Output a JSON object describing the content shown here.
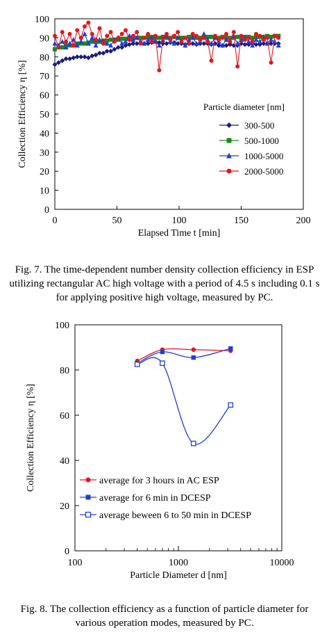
{
  "figures": [
    {
      "caption": "Fig. 7.  The time-dependent number density collection efficiency in ESP utilizing rectangular AC high voltage with a period of 4.5 s including 0.1 s for applying positive high voltage, measured by PC."
    },
    {
      "caption": "Fig. 8.  The collection efficiency as a function of particle diameter for various operation modes, measured by PC."
    }
  ],
  "chart_data": [
    {
      "type": "line",
      "title": "",
      "xlabel": "Elapsed Time t [min]",
      "ylabel": "Collection Efficiency  η  [%]",
      "xlim": [
        0,
        200
      ],
      "ylim": [
        0,
        100
      ],
      "xticks": [
        0,
        50,
        100,
        150,
        200
      ],
      "yticks": [
        0,
        10,
        20,
        30,
        40,
        50,
        60,
        70,
        80,
        90,
        100
      ],
      "grid": false,
      "legend_title": "Particle diameter [nm]",
      "legend_position": "center-right",
      "series": [
        {
          "name": "300-500",
          "color": "#1a1a80",
          "marker": "diamond",
          "x": [
            0,
            3,
            6,
            9,
            12,
            15,
            18,
            21,
            24,
            27,
            30,
            33,
            36,
            39,
            42,
            45,
            48,
            51,
            54,
            57,
            60,
            63,
            66,
            69,
            72,
            75,
            78,
            81,
            84,
            87,
            90,
            93,
            96,
            99,
            102,
            105,
            108,
            111,
            114,
            117,
            120,
            123,
            126,
            129,
            132,
            135,
            138,
            141,
            144,
            147,
            150,
            153,
            156,
            159,
            162,
            165,
            168,
            171,
            174,
            177,
            180
          ],
          "y": [
            76,
            77,
            78,
            79,
            79,
            79.5,
            80,
            80,
            80,
            79.5,
            80.5,
            81,
            82,
            82,
            83,
            83,
            84,
            85,
            85,
            86,
            86.5,
            87,
            87,
            87.5,
            87,
            87,
            87.5,
            88,
            87.5,
            87,
            87,
            87.5,
            87.5,
            87,
            87,
            86.5,
            87,
            87,
            86.5,
            87,
            87,
            87,
            86.5,
            87,
            86,
            86,
            86,
            86.5,
            86,
            86,
            87,
            86.5,
            86.5,
            87,
            86.5,
            86.5,
            87,
            87,
            87,
            87,
            87
          ]
        },
        {
          "name": "500-1000",
          "color": "#1a8a1a",
          "marker": "square",
          "x": [
            0,
            3,
            6,
            9,
            12,
            15,
            18,
            21,
            24,
            27,
            30,
            33,
            36,
            39,
            42,
            45,
            48,
            51,
            54,
            57,
            60,
            63,
            66,
            69,
            72,
            75,
            78,
            81,
            84,
            87,
            90,
            93,
            96,
            99,
            102,
            105,
            108,
            111,
            114,
            117,
            120,
            123,
            126,
            129,
            132,
            135,
            138,
            141,
            144,
            147,
            150,
            153,
            156,
            159,
            162,
            165,
            168,
            171,
            174,
            177,
            180
          ],
          "y": [
            84,
            85,
            85,
            86,
            86,
            86,
            87,
            87,
            87,
            87.5,
            88,
            88,
            88,
            88.5,
            88.5,
            89,
            89,
            89,
            89.5,
            89.5,
            90,
            90,
            90,
            90,
            90,
            90.5,
            90.5,
            90,
            90,
            90.5,
            90,
            90,
            90.5,
            90,
            90,
            90,
            90.5,
            90.5,
            90,
            90,
            90,
            90.5,
            90.5,
            90,
            90,
            90.5,
            90,
            90,
            90,
            90.5,
            90,
            90.5,
            90.5,
            90,
            90.5,
            90.5,
            90.5,
            91,
            90.5,
            91,
            91
          ]
        },
        {
          "name": "1000-5000",
          "color": "#1f3fd6",
          "marker": "triangle",
          "x": [
            0,
            3,
            6,
            9,
            12,
            15,
            18,
            21,
            24,
            27,
            30,
            33,
            36,
            39,
            42,
            45,
            48,
            51,
            54,
            57,
            60,
            63,
            66,
            69,
            72,
            75,
            78,
            81,
            84,
            87,
            90,
            93,
            96,
            99,
            102,
            105,
            108,
            111,
            114,
            117,
            120,
            123,
            126,
            129,
            132,
            135,
            138,
            141,
            144,
            147,
            150,
            153,
            156,
            159,
            162,
            165,
            168,
            171,
            174,
            177,
            180
          ],
          "y": [
            87,
            86,
            88,
            85,
            87,
            89,
            86,
            88,
            92,
            87,
            90,
            86,
            89,
            88,
            87,
            86,
            89,
            90,
            87,
            88,
            91,
            89,
            90,
            88,
            87,
            89,
            90,
            88,
            86,
            89,
            91,
            88,
            87,
            90,
            88,
            86,
            89,
            90,
            87,
            88,
            92,
            89,
            87,
            90,
            88,
            86,
            89,
            88,
            91,
            87,
            89,
            90,
            88,
            86,
            89,
            88,
            90,
            87,
            89,
            88,
            86
          ]
        },
        {
          "name": "2000-5000",
          "color": "#e8141c",
          "marker": "circle",
          "x": [
            0,
            3,
            6,
            9,
            12,
            15,
            18,
            21,
            24,
            27,
            30,
            33,
            36,
            39,
            42,
            45,
            48,
            51,
            54,
            57,
            60,
            63,
            66,
            69,
            72,
            75,
            78,
            81,
            84,
            87,
            90,
            93,
            96,
            99,
            102,
            105,
            108,
            111,
            114,
            117,
            120,
            123,
            126,
            129,
            132,
            135,
            138,
            141,
            144,
            147,
            150,
            153,
            156,
            159,
            162,
            165,
            168,
            171,
            174,
            177,
            180
          ],
          "y": [
            91,
            85,
            93,
            88,
            92,
            86,
            94,
            90,
            96,
            98,
            92,
            89,
            95,
            87,
            91,
            93,
            88,
            90,
            92,
            94,
            89,
            91,
            93,
            87,
            90,
            92,
            88,
            91,
            73,
            90,
            92,
            89,
            91,
            93,
            88,
            90,
            87,
            92,
            91,
            89,
            90,
            88,
            78,
            91,
            89,
            90,
            92,
            88,
            93,
            75,
            91,
            89,
            90,
            88,
            92,
            91,
            89,
            90,
            77,
            91,
            90
          ]
        }
      ]
    },
    {
      "type": "line",
      "title": "",
      "xlabel": "Particle Diameter d [nm]",
      "ylabel": "Collection Efficiency  η  [%]",
      "xscale": "log",
      "xlim": [
        100,
        10000
      ],
      "ylim": [
        0,
        100
      ],
      "xticks": [
        100,
        1000,
        10000
      ],
      "yticks": [
        0,
        20,
        40,
        60,
        80,
        100
      ],
      "grid": false,
      "legend_position": "bottom-left",
      "series": [
        {
          "name": "average for 3 hours in AC ESP",
          "color": "#e8141c",
          "marker": "circle",
          "x": [
            400,
            700,
            1400,
            3200
          ],
          "y": [
            84,
            89,
            89,
            88.5
          ]
        },
        {
          "name": "average for 6 min in DCESP",
          "color": "#1f3fd6",
          "marker": "square",
          "x": [
            400,
            700,
            1400,
            3200
          ],
          "y": [
            83,
            88,
            85.5,
            89.5
          ]
        },
        {
          "name": "average beween 6 to 50 min in DCESP",
          "color": "#1f3fd6",
          "marker": "square-open",
          "x": [
            400,
            700,
            1400,
            3200
          ],
          "y": [
            82.5,
            83,
            47.5,
            64.5
          ]
        }
      ]
    }
  ]
}
